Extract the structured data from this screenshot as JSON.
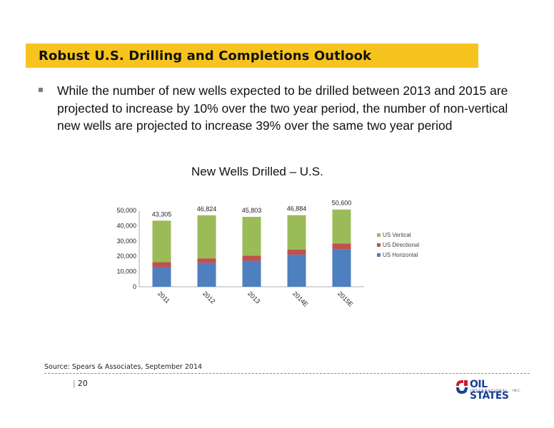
{
  "slide": {
    "title": "Robust U.S. Drilling and Completions Outlook",
    "bullet": "While the number of new wells expected to be drilled between 2013 and 2015 are projected to increase by 10% over the two year period, the number of non-vertical new wells are projected to increase 39% over the same two year period",
    "source": "Source: Spears & Associates, September 2014",
    "page_number": "20"
  },
  "logo": {
    "name": "OIL STATES",
    "sub": "INTERNATIONAL, INC.",
    "colors": {
      "navy": "#1b3f8f",
      "red": "#cc1f2d"
    }
  },
  "chart_data": {
    "type": "bar",
    "stacked": true,
    "title": "New Wells Drilled – U.S.",
    "categories": [
      "2011",
      "2012",
      "2013",
      "2014E",
      "2015E"
    ],
    "series": [
      {
        "name": "US Horizontal",
        "color": "#4e7fbf",
        "values": [
          12800,
          15600,
          17000,
          21000,
          24600
        ]
      },
      {
        "name": "US Directional",
        "color": "#c0504d",
        "values": [
          3300,
          3000,
          3400,
          3300,
          3800
        ]
      },
      {
        "name": "US Vertical",
        "color": "#9bbb59",
        "values": [
          27205,
          28224,
          25403,
          22584,
          22200
        ]
      }
    ],
    "totals": [
      "43,305",
      "46,824",
      "45,803",
      "46,884",
      "50,600"
    ],
    "ylim": [
      0,
      50000
    ],
    "yticks": [
      "0",
      "10,000",
      "20,000",
      "30,000",
      "40,000",
      "50,000"
    ],
    "xlabel": "",
    "ylabel": "",
    "legend_position": "right",
    "grid": false
  }
}
